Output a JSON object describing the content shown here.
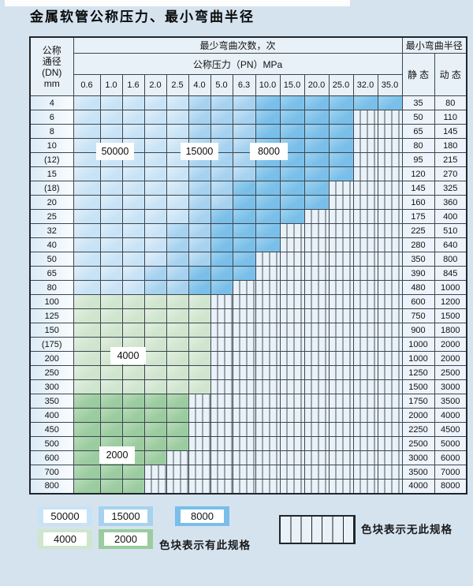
{
  "title": "金属软管公称压力、最小弯曲半径",
  "colors": {
    "page_bg": "#d5e3ef",
    "border": "#3c4650",
    "blue_light": "#c9e3f6",
    "blue_med": "#a6d2f0",
    "blue_dark": "#79bfe9",
    "green_light": "#d0e5ce",
    "green_dark": "#9bcc9f",
    "nospec_bg": "#eaf2f9"
  },
  "table": {
    "header": {
      "dn_label_lines": [
        "公称",
        "通径",
        "(DN)",
        "mm"
      ],
      "bend_cycles_label": "最少弯曲次数，次",
      "pressure_label": "公称压力（PN）MPa",
      "pressure_values": [
        "0.6",
        "1.0",
        "1.6",
        "2.0",
        "2.5",
        "4.0",
        "5.0",
        "6.3",
        "10.0",
        "15.0",
        "20.0",
        "25.0",
        "32.0",
        "35.0"
      ],
      "radius_label": "最小弯曲半径",
      "static_label": "静 态",
      "dynamic_label": "动 态"
    },
    "rows": [
      {
        "dn": "4",
        "colored_until": 14,
        "light_end": 5,
        "med_end": 8,
        "family": "blue",
        "static": "35",
        "dynamic": "80"
      },
      {
        "dn": "6",
        "colored_until": 12,
        "light_end": 5,
        "med_end": 8,
        "family": "blue",
        "static": "50",
        "dynamic": "110"
      },
      {
        "dn": "8",
        "colored_until": 12,
        "light_end": 5,
        "med_end": 8,
        "family": "blue",
        "static": "65",
        "dynamic": "145"
      },
      {
        "dn": "10",
        "colored_until": 12,
        "light_end": 5,
        "med_end": 8,
        "family": "blue",
        "static": "80",
        "dynamic": "180"
      },
      {
        "dn": "(12)",
        "colored_until": 12,
        "light_end": 5,
        "med_end": 8,
        "family": "blue",
        "static": "95",
        "dynamic": "215"
      },
      {
        "dn": "15",
        "colored_until": 12,
        "light_end": 5,
        "med_end": 8,
        "family": "blue",
        "static": "120",
        "dynamic": "270"
      },
      {
        "dn": "(18)",
        "colored_until": 11,
        "light_end": 5,
        "med_end": 7,
        "family": "blue",
        "static": "145",
        "dynamic": "325"
      },
      {
        "dn": "20",
        "colored_until": 11,
        "light_end": 5,
        "med_end": 7,
        "family": "blue",
        "static": "160",
        "dynamic": "360"
      },
      {
        "dn": "25",
        "colored_until": 10,
        "light_end": 5,
        "med_end": 6,
        "family": "blue",
        "static": "175",
        "dynamic": "400"
      },
      {
        "dn": "32",
        "colored_until": 9,
        "light_end": 4,
        "med_end": 6,
        "family": "blue",
        "static": "225",
        "dynamic": "510"
      },
      {
        "dn": "40",
        "colored_until": 9,
        "light_end": 4,
        "med_end": 6,
        "family": "blue",
        "static": "280",
        "dynamic": "640"
      },
      {
        "dn": "50",
        "colored_until": 8,
        "light_end": 4,
        "med_end": 6,
        "family": "blue",
        "static": "350",
        "dynamic": "800"
      },
      {
        "dn": "65",
        "colored_until": 8,
        "light_end": 3,
        "med_end": 5,
        "family": "blue",
        "static": "390",
        "dynamic": "845"
      },
      {
        "dn": "80",
        "colored_until": 7,
        "light_end": 3,
        "med_end": 5,
        "family": "blue",
        "static": "480",
        "dynamic": "1000"
      },
      {
        "dn": "100",
        "colored_until": 6,
        "family": "green4000",
        "static": "600",
        "dynamic": "1200"
      },
      {
        "dn": "125",
        "colored_until": 6,
        "family": "green4000",
        "static": "750",
        "dynamic": "1500"
      },
      {
        "dn": "150",
        "colored_until": 6,
        "family": "green4000",
        "static": "900",
        "dynamic": "1800"
      },
      {
        "dn": "(175)",
        "colored_until": 6,
        "family": "green4000",
        "static": "1000",
        "dynamic": "2000"
      },
      {
        "dn": "200",
        "colored_until": 6,
        "family": "green4000",
        "static": "1000",
        "dynamic": "2000"
      },
      {
        "dn": "250",
        "colored_until": 6,
        "family": "green4000",
        "static": "1250",
        "dynamic": "2500"
      },
      {
        "dn": "300",
        "colored_until": 6,
        "family": "green4000",
        "static": "1500",
        "dynamic": "3000"
      },
      {
        "dn": "350",
        "colored_until": 5,
        "family": "green2000",
        "static": "1750",
        "dynamic": "3500"
      },
      {
        "dn": "400",
        "colored_until": 5,
        "family": "green2000",
        "static": "2000",
        "dynamic": "4000"
      },
      {
        "dn": "450",
        "colored_until": 5,
        "family": "green2000",
        "static": "2250",
        "dynamic": "4500"
      },
      {
        "dn": "500",
        "colored_until": 5,
        "family": "green2000",
        "static": "2500",
        "dynamic": "5000"
      },
      {
        "dn": "600",
        "colored_until": 4,
        "family": "green2000",
        "static": "3000",
        "dynamic": "6000"
      },
      {
        "dn": "700",
        "colored_until": 3,
        "family": "green2000",
        "static": "3500",
        "dynamic": "7000"
      },
      {
        "dn": "800",
        "colored_until": 3,
        "family": "green2000",
        "static": "4000",
        "dynamic": "8000"
      }
    ],
    "overlays": [
      {
        "text": "50000"
      },
      {
        "text": "15000"
      },
      {
        "text": "8000"
      },
      {
        "text": "4000"
      },
      {
        "text": "2000"
      }
    ]
  },
  "legend": {
    "items": [
      {
        "value": "50000",
        "class": "blue_light"
      },
      {
        "value": "15000",
        "class": "blue_med"
      },
      {
        "value": "8000",
        "class": "blue_dark"
      },
      {
        "value": "4000",
        "class": "green_light"
      },
      {
        "value": "2000",
        "class": "green_dark"
      }
    ],
    "available_text": "色块表示有此规格",
    "unavailable_text": "色块表示无此规格"
  }
}
